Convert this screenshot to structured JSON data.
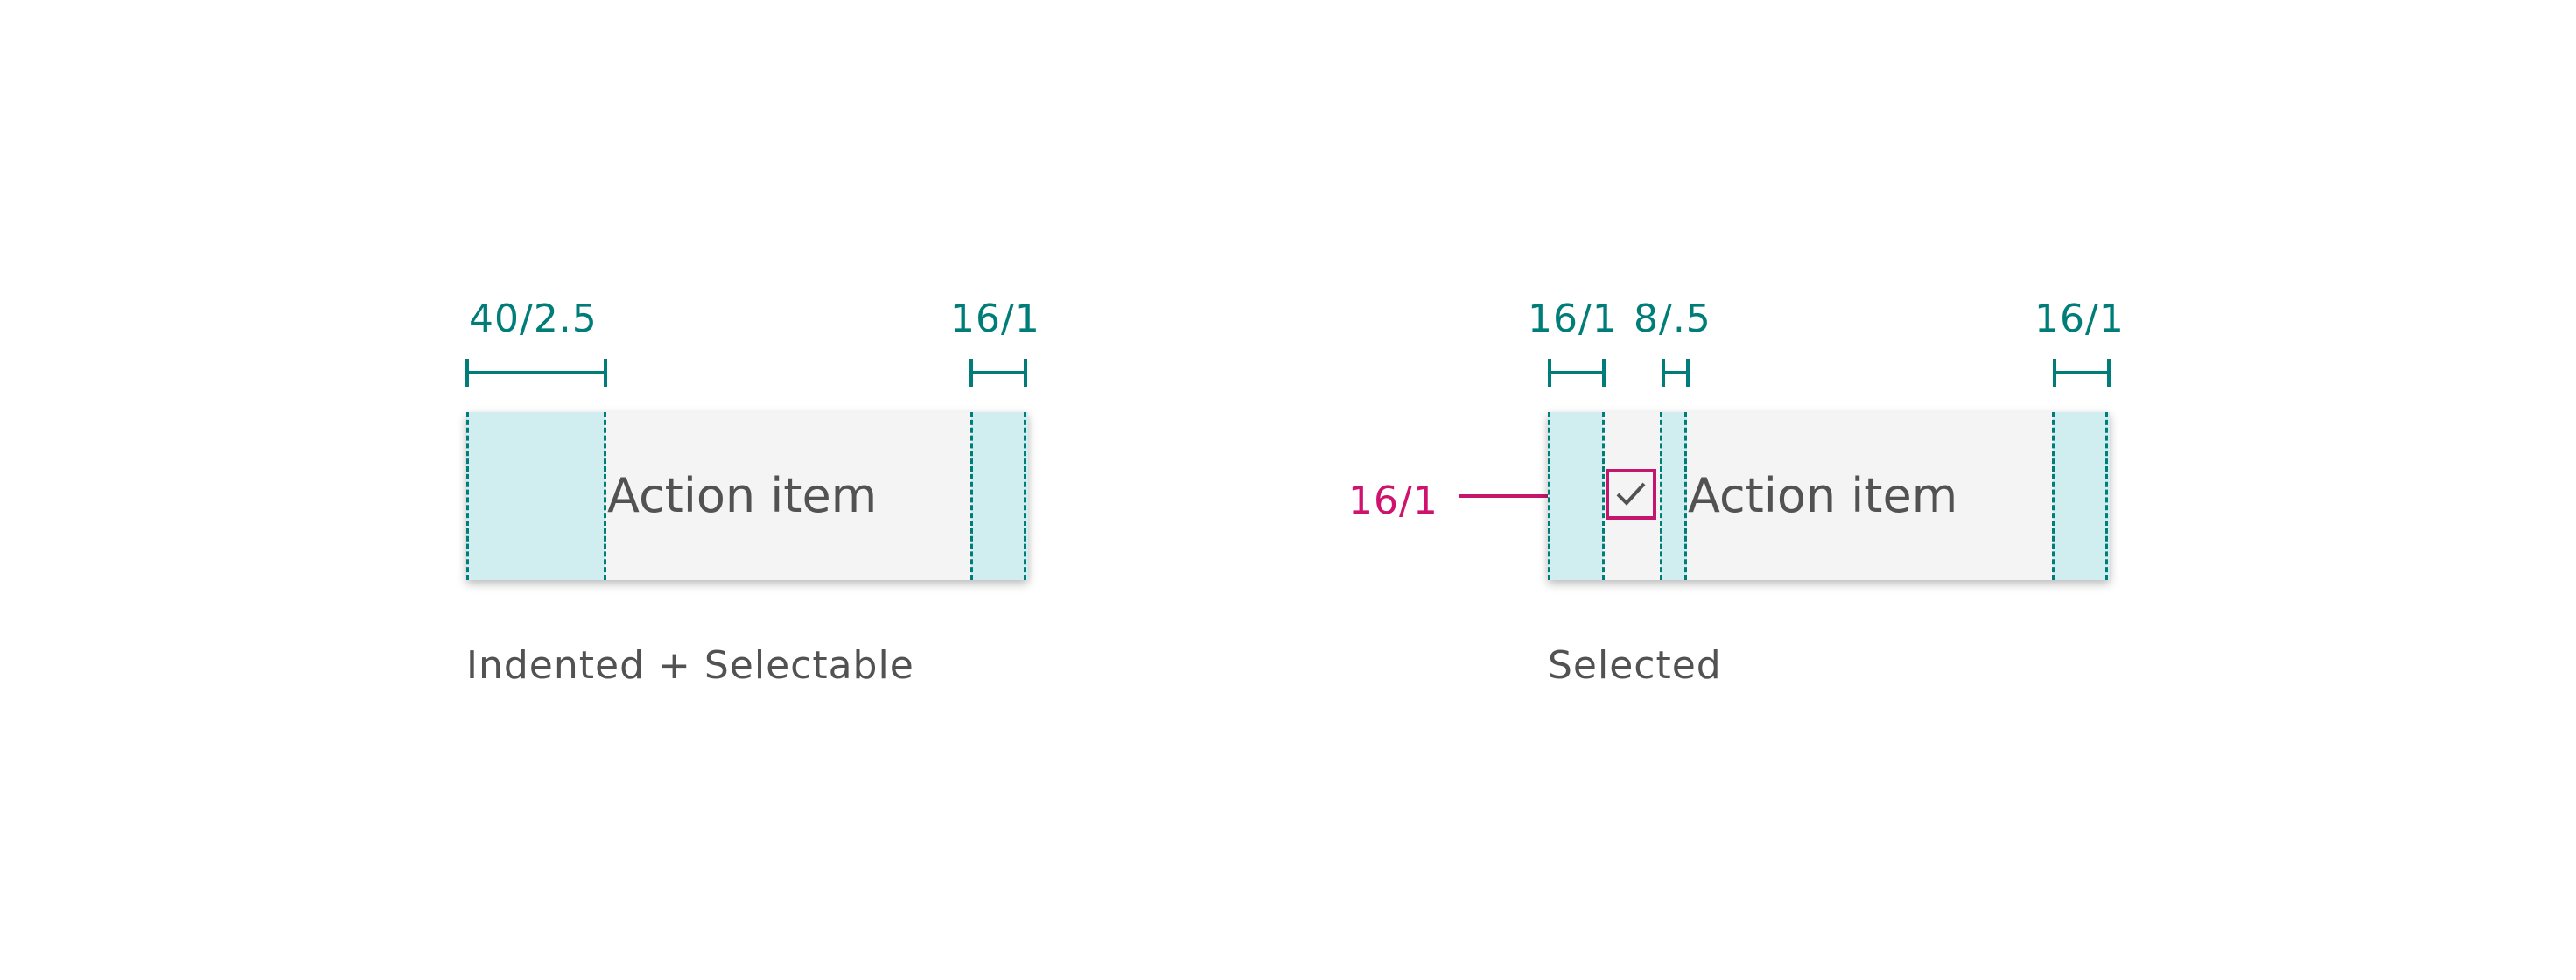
{
  "diagrams": [
    {
      "item_label": "Action item",
      "caption": "Indented + Selectable",
      "measurements": [
        "40/2.5",
        "16/1"
      ]
    },
    {
      "item_label": "Action item",
      "caption": "Selected",
      "measurements": [
        "16/1",
        "8/.5",
        "16/1"
      ],
      "checkbox_callout": "16/1"
    }
  ],
  "colors": {
    "measure": "#017d79",
    "padding_fill": "#d0eeef",
    "item_background": "#f4f4f4",
    "callout": "#d0126f",
    "text": "#525252"
  },
  "icons": [
    "checkmark-icon"
  ]
}
